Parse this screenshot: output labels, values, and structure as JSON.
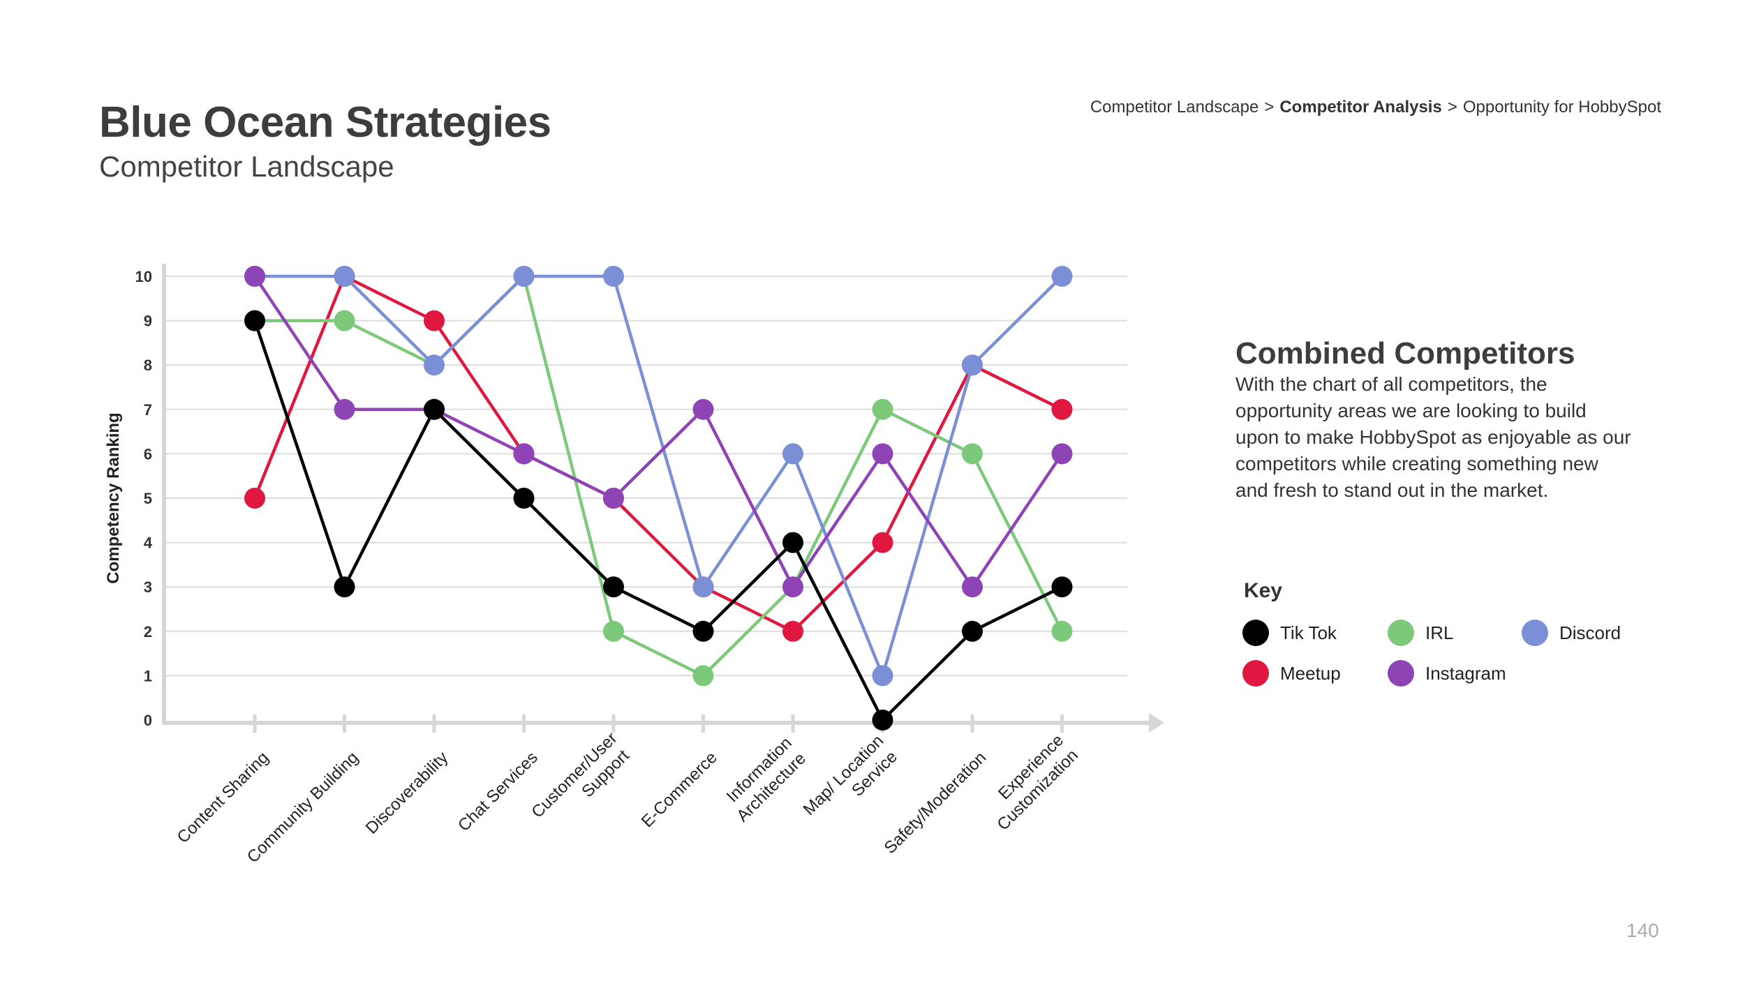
{
  "header": {
    "title": "Blue Ocean Strategies",
    "subtitle": "Competitor Landscape",
    "breadcrumb": [
      "Competitor Landscape",
      "Competitor Analysis",
      "Opportunity for HobbySpot"
    ],
    "breadcrumb_separator": ">"
  },
  "side": {
    "title": "Combined Competitors",
    "text": "With the chart of all competitors, the opportunity areas we are looking to build upon to make HobbySpot as enjoyable as our competitors while creating something new and fresh to stand out in the market."
  },
  "key": {
    "title": "Key",
    "items": [
      {
        "label": "Tik Tok",
        "color": "#000000"
      },
      {
        "label": "IRL",
        "color": "#7dc97a"
      },
      {
        "label": "Discord",
        "color": "#7b8fd6"
      },
      {
        "label": "Meetup",
        "color": "#e0183f"
      },
      {
        "label": "Instagram",
        "color": "#8e44b5"
      }
    ]
  },
  "page_number": "140",
  "chart_data": {
    "type": "line",
    "title": "",
    "xlabel": "",
    "ylabel": "Competency Ranking",
    "ylim": [
      0,
      10
    ],
    "yticks": [
      "0",
      "1",
      "2",
      "3",
      "4",
      "5",
      "6",
      "7",
      "8",
      "9",
      "10"
    ],
    "grid": true,
    "categories": [
      "Content Sharing",
      "Community Building",
      "Discoverability",
      "Chat Services",
      "Customer/User Support",
      "E-Commerce",
      "Information Architecture",
      "Map/ Location Service",
      "Safety/Moderation",
      "Experience Customization"
    ],
    "category_label_lines": [
      [
        "Content Sharing"
      ],
      [
        "Community Building"
      ],
      [
        "Discoverability"
      ],
      [
        "Chat Services"
      ],
      [
        "Customer/User",
        "Support"
      ],
      [
        "E-Commerce"
      ],
      [
        "Information",
        "Architecture"
      ],
      [
        "Map/ Location",
        "Service"
      ],
      [
        "Safety/Moderation"
      ],
      [
        "Experience",
        "Customization"
      ]
    ],
    "series": [
      {
        "name": "Meetup",
        "color": "#e0183f",
        "values": [
          5,
          10,
          9,
          6,
          5,
          3,
          2,
          4,
          8,
          7
        ]
      },
      {
        "name": "IRL",
        "color": "#7dc97a",
        "values": [
          9,
          9,
          8,
          10,
          2,
          1,
          3,
          7,
          6,
          2
        ]
      },
      {
        "name": "Discord",
        "color": "#7b8fd6",
        "values": [
          10,
          10,
          8,
          10,
          10,
          3,
          6,
          1,
          8,
          10
        ]
      },
      {
        "name": "Instagram",
        "color": "#8e44b5",
        "values": [
          10,
          7,
          7,
          6,
          5,
          7,
          3,
          6,
          3,
          6
        ]
      },
      {
        "name": "Tik Tok",
        "color": "#000000",
        "values": [
          9,
          3,
          7,
          5,
          3,
          2,
          4,
          0,
          2,
          3
        ]
      }
    ]
  }
}
